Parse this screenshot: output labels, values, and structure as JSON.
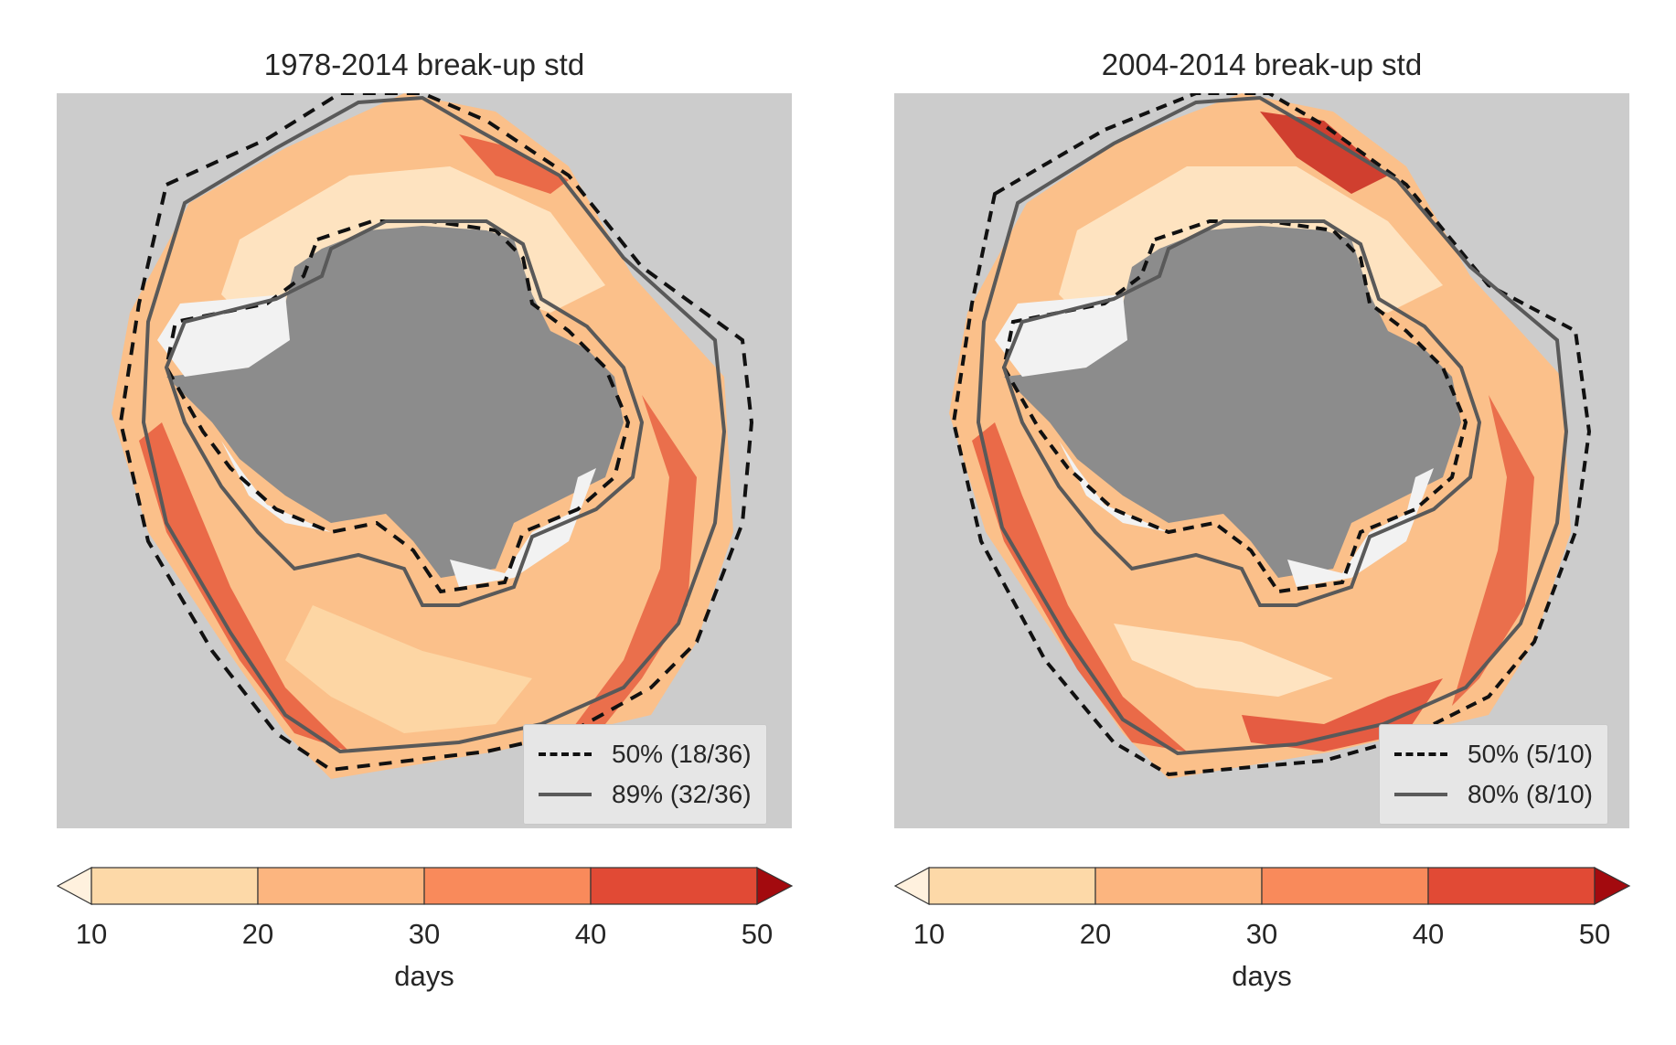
{
  "figure": {
    "colors": {
      "ocean_background": "#cccccc",
      "land": "#8c8c8c",
      "ice_shelf": "#f2f2f2",
      "contour_50": "#111111",
      "contour_high": "#595959"
    }
  },
  "chart_data": [
    {
      "type": "heatmap",
      "title": "1978-2014 break-up std",
      "colorbar": {
        "label": "days",
        "ticks": [
          "10",
          "20",
          "30",
          "40",
          "50"
        ],
        "bins": [
          10,
          20,
          30,
          40,
          50
        ],
        "colors": [
          "#fdd9a8",
          "#fcb57f",
          "#f98a5b",
          "#e14a35",
          "#a30a0e"
        ],
        "under_color": "#fff1de",
        "extend": "both"
      },
      "contours": [
        {
          "label": "50% (18/36)",
          "style": "dashed"
        },
        {
          "label": "89% (32/36)",
          "style": "solid"
        }
      ],
      "legend_location": "lower right",
      "grid": false
    },
    {
      "type": "heatmap",
      "title": "2004-2014 break-up std",
      "colorbar": {
        "label": "days",
        "ticks": [
          "10",
          "20",
          "30",
          "40",
          "50"
        ],
        "bins": [
          10,
          20,
          30,
          40,
          50
        ],
        "colors": [
          "#fdd9a8",
          "#fcb57f",
          "#f98a5b",
          "#e14a35",
          "#a30a0e"
        ],
        "under_color": "#fff1de",
        "extend": "both"
      },
      "contours": [
        {
          "label": "50% (5/10)",
          "style": "dashed"
        },
        {
          "label": "80% (8/10)",
          "style": "solid"
        }
      ],
      "legend_location": "lower right",
      "grid": false
    }
  ]
}
